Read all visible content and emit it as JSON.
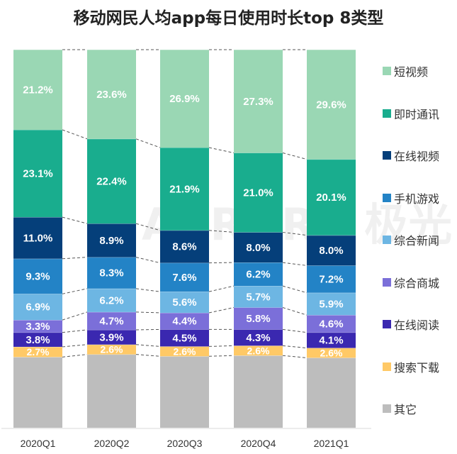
{
  "chart_data": {
    "type": "bar",
    "stacked": true,
    "percent": true,
    "title": "移动网民人均app每日使用时长top 8类型",
    "xlabel": "",
    "ylabel": "",
    "ylim": [
      0,
      100
    ],
    "categories": [
      "2020Q1",
      "2020Q2",
      "2020Q3",
      "2020Q4",
      "2021Q1"
    ],
    "legend_position": "right",
    "watermark": "AURORA 极光",
    "series": [
      {
        "name": "其它",
        "color": "#bdbdbd",
        "values": [
          18.7,
          19.4,
          18.9,
          19.1,
          18.5
        ],
        "labels": [
          "",
          "",
          "",
          "",
          ""
        ]
      },
      {
        "name": "搜索下载",
        "color": "#ffc966",
        "values": [
          2.7,
          2.6,
          2.6,
          2.6,
          2.6
        ],
        "labels": [
          "2.7%",
          "2.6%",
          "2.6%",
          "2.6%",
          "2.6%"
        ]
      },
      {
        "name": "在线阅读",
        "color": "#3a28b0",
        "values": [
          3.8,
          3.9,
          4.5,
          4.3,
          4.1
        ],
        "labels": [
          "3.8%",
          "3.9%",
          "4.5%",
          "4.3%",
          "4.1%"
        ]
      },
      {
        "name": "综合商城",
        "color": "#7b6fd9",
        "values": [
          3.3,
          4.7,
          4.4,
          5.8,
          4.6
        ],
        "labels": [
          "3.3%",
          "4.7%",
          "4.4%",
          "5.8%",
          "4.6%"
        ]
      },
      {
        "name": "综合新闻",
        "color": "#6db6e3",
        "values": [
          6.9,
          6.2,
          5.6,
          5.7,
          5.9
        ],
        "labels": [
          "6.9%",
          "6.2%",
          "5.6%",
          "5.7%",
          "5.9%"
        ]
      },
      {
        "name": "手机游戏",
        "color": "#2383c6",
        "values": [
          9.3,
          8.3,
          7.6,
          6.2,
          7.2
        ],
        "labels": [
          "9.3%",
          "8.3%",
          "7.6%",
          "6.2%",
          "7.2%"
        ]
      },
      {
        "name": "在线视频",
        "color": "#053f7a",
        "values": [
          11.0,
          8.9,
          8.6,
          8.0,
          8.0
        ],
        "labels": [
          "11.0%",
          "8.9%",
          "8.6%",
          "8.0%",
          "8.0%"
        ]
      },
      {
        "name": "即时通讯",
        "color": "#19ad8e",
        "values": [
          23.1,
          22.4,
          21.9,
          21.0,
          20.1
        ],
        "labels": [
          "23.1%",
          "22.4%",
          "21.9%",
          "21.0%",
          "20.1%"
        ]
      },
      {
        "name": "短视频",
        "color": "#9ad7b4",
        "values": [
          21.2,
          23.6,
          26.9,
          27.3,
          29.6
        ],
        "labels": [
          "21.2%",
          "23.6%",
          "26.9%",
          "27.3%",
          "29.6%"
        ]
      }
    ],
    "legend_order": [
      "短视频",
      "即时通讯",
      "在线视频",
      "手机游戏",
      "综合新闻",
      "综合商城",
      "在线阅读",
      "搜索下载",
      "其它"
    ]
  }
}
